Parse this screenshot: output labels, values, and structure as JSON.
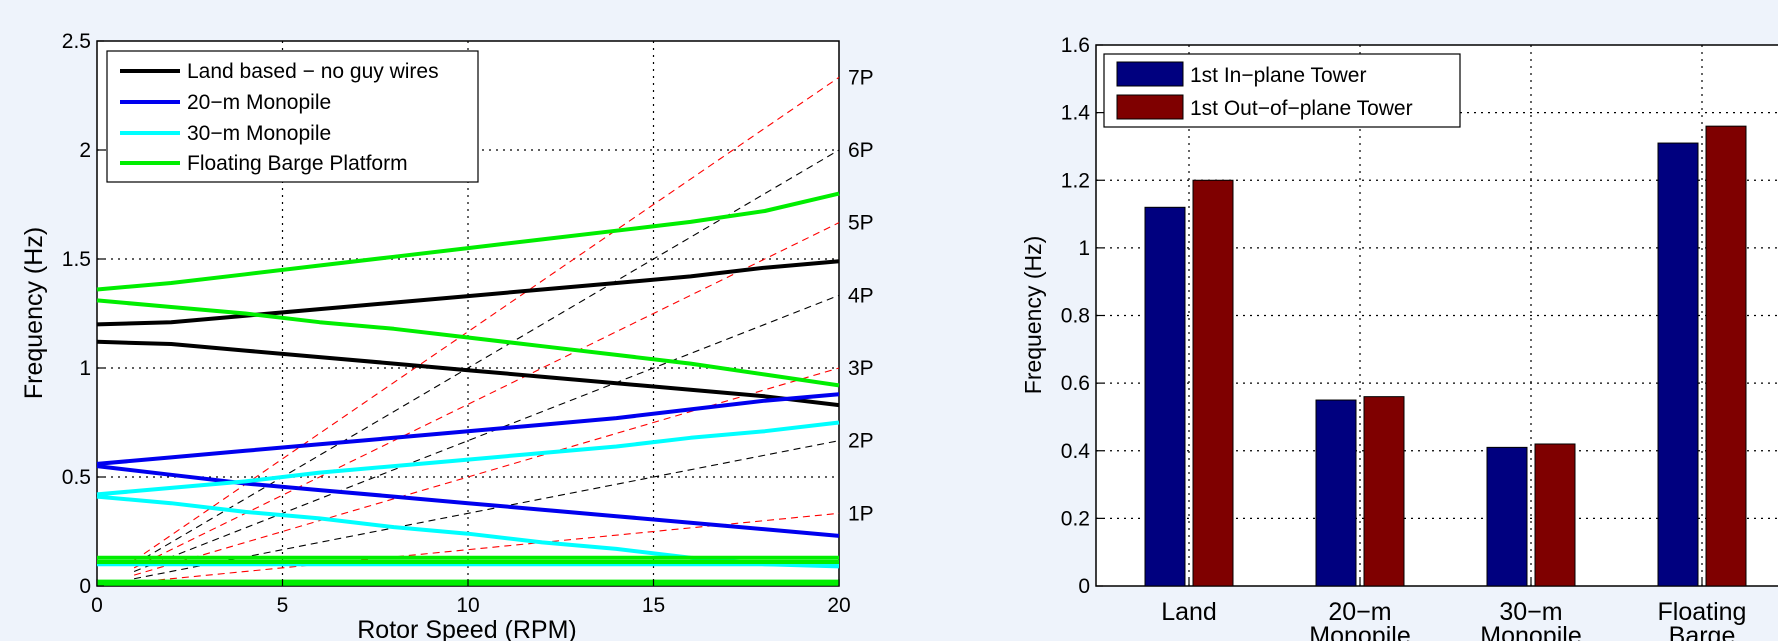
{
  "chart_data": [
    {
      "type": "line",
      "xlabel": "Rotor Speed (RPM)",
      "ylabel": "Frequency (Hz)",
      "xlim": [
        0,
        20
      ],
      "ylim": [
        0,
        2.5
      ],
      "x_ticks": [
        "0",
        "5",
        "10",
        "15",
        "20"
      ],
      "y_ticks": [
        "0",
        "0.5",
        "1",
        "1.5",
        "2",
        "2.5"
      ],
      "grid": true,
      "legend_position": "top-left",
      "x": [
        0,
        2,
        4,
        6,
        8,
        10,
        12,
        14,
        16,
        18,
        20
      ],
      "series": [
        {
          "name": "Land based - no guy wires",
          "color": "#000000",
          "lines": [
            [
              1.2,
              1.21,
              1.24,
              1.27,
              1.3,
              1.33,
              1.36,
              1.39,
              1.42,
              1.46,
              1.49
            ],
            [
              1.12,
              1.11,
              1.08,
              1.05,
              1.02,
              0.99,
              0.96,
              0.93,
              0.9,
              0.87,
              0.83
            ]
          ]
        },
        {
          "name": "20-m Monopile",
          "color": "#0000ee",
          "lines": [
            [
              0.56,
              0.59,
              0.62,
              0.65,
              0.68,
              0.71,
              0.74,
              0.77,
              0.81,
              0.85,
              0.88
            ],
            [
              0.55,
              0.51,
              0.47,
              0.44,
              0.41,
              0.38,
              0.35,
              0.32,
              0.29,
              0.26,
              0.23
            ]
          ]
        },
        {
          "name": "30-m Monopile",
          "color": "#00ffff",
          "lines": [
            [
              0.42,
              0.45,
              0.48,
              0.52,
              0.55,
              0.58,
              0.61,
              0.64,
              0.68,
              0.71,
              0.75
            ],
            [
              0.41,
              0.38,
              0.34,
              0.31,
              0.27,
              0.24,
              0.2,
              0.17,
              0.13,
              0.1,
              0.09
            ],
            [
              0.1,
              0.1,
              0.1,
              0.1,
              0.1,
              0.1,
              0.1,
              0.1,
              0.1,
              0.1,
              0.1
            ]
          ]
        },
        {
          "name": "Floating Barge Platform",
          "color": "#00ee00",
          "lines": [
            [
              1.36,
              1.39,
              1.43,
              1.47,
              1.51,
              1.55,
              1.59,
              1.63,
              1.67,
              1.72,
              1.8
            ],
            [
              1.31,
              1.28,
              1.25,
              1.21,
              1.18,
              1.14,
              1.1,
              1.06,
              1.02,
              0.97,
              0.92
            ],
            [
              0.13,
              0.13,
              0.13,
              0.13,
              0.13,
              0.13,
              0.13,
              0.13,
              0.13,
              0.13,
              0.13
            ],
            [
              0.11,
              0.11,
              0.11,
              0.11,
              0.11,
              0.11,
              0.11,
              0.11,
              0.11,
              0.11,
              0.11
            ],
            [
              0.02,
              0.02,
              0.02,
              0.02,
              0.02,
              0.02,
              0.02,
              0.02,
              0.02,
              0.02,
              0.02
            ],
            [
              0.01,
              0.01,
              0.01,
              0.01,
              0.01,
              0.01,
              0.01,
              0.01,
              0.01,
              0.01,
              0.01
            ]
          ]
        }
      ],
      "harmonics": [
        {
          "label": "1P",
          "multiple": 1,
          "color": "#ff0000"
        },
        {
          "label": "2P",
          "multiple": 2,
          "color": "#000000"
        },
        {
          "label": "3P",
          "multiple": 3,
          "color": "#ff0000"
        },
        {
          "label": "4P",
          "multiple": 4,
          "color": "#000000"
        },
        {
          "label": "5P",
          "multiple": 5,
          "color": "#ff0000"
        },
        {
          "label": "6P",
          "multiple": 6,
          "color": "#000000"
        },
        {
          "label": "7P",
          "multiple": 7,
          "color": "#ff0000"
        }
      ],
      "harmonic_start_rpm": 1
    },
    {
      "type": "bar",
      "ylabel": "Frequency (Hz)",
      "ylim": [
        0,
        1.6
      ],
      "y_ticks": [
        "0",
        "0.2",
        "0.4",
        "0.6",
        "0.8",
        "1",
        "1.2",
        "1.4",
        "1.6"
      ],
      "grid": true,
      "legend_position": "top-left",
      "categories": [
        [
          "Land"
        ],
        [
          "20−m",
          "Monopile"
        ],
        [
          "30−m",
          "Monopile"
        ],
        [
          "Floating",
          "Barge"
        ]
      ],
      "series": [
        {
          "name": "1st In−plane Tower",
          "color": "#00007f",
          "values": [
            1.12,
            0.55,
            0.41,
            1.31
          ]
        },
        {
          "name": "1st Out−of−plane Tower",
          "color": "#7f0000",
          "values": [
            1.2,
            0.56,
            0.42,
            1.36
          ]
        }
      ]
    }
  ],
  "legend_labels": {
    "land": "Land based − no guy wires",
    "m20": "20−m Monopile",
    "m30": "30−m Monopile",
    "barge": "Floating Barge Platform"
  }
}
